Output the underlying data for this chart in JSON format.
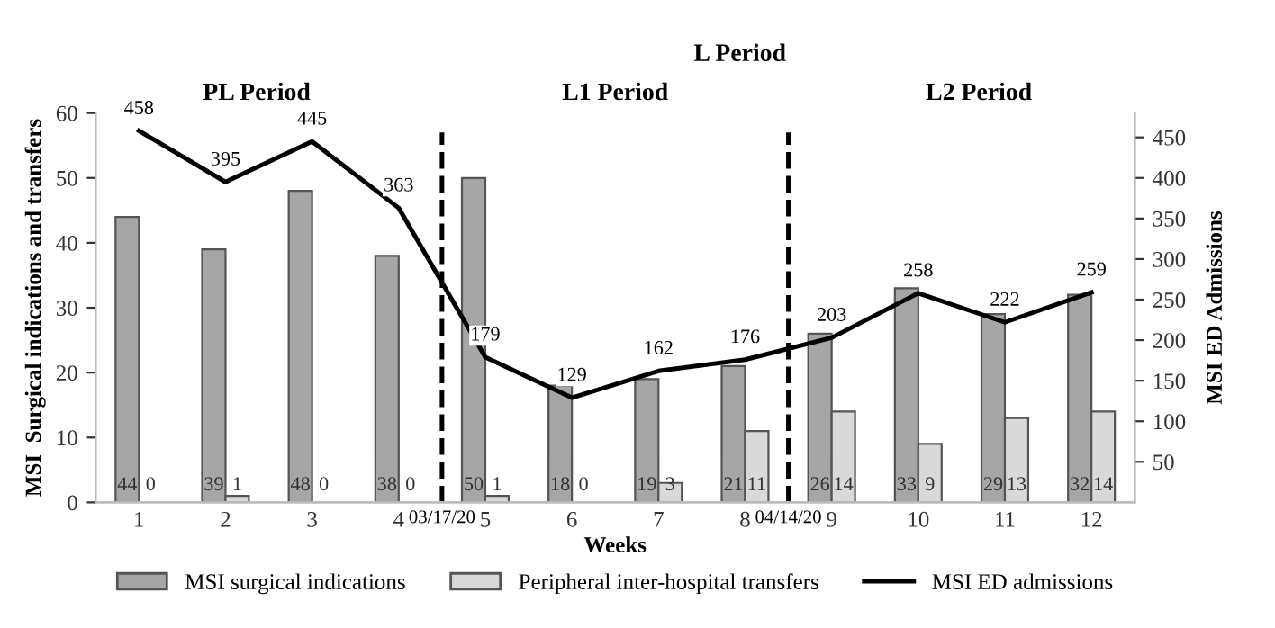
{
  "chart_data": {
    "type": "bar",
    "xlabel": "Weeks",
    "ylabel": "MSI  Surgical indications and transfers",
    "y2label": "MSI ED Admissions",
    "x": [
      1,
      2,
      3,
      4,
      5,
      6,
      7,
      8,
      9,
      10,
      11,
      12
    ],
    "xlim": [
      0.5,
      12.5
    ],
    "xticks": [
      1,
      2,
      3,
      4,
      5,
      6,
      7,
      8,
      9,
      10,
      11,
      12
    ],
    "ylim": [
      0,
      60
    ],
    "yticks": [
      0,
      10,
      20,
      30,
      40,
      50,
      60
    ],
    "y2lim": [
      0,
      480
    ],
    "y2ticks": [
      50,
      100,
      150,
      200,
      250,
      300,
      350,
      400,
      450
    ],
    "series": [
      {
        "name": "MSI surgical indications",
        "color": "#a6a6a6",
        "values": [
          44,
          39,
          48,
          38,
          50,
          18,
          19,
          21,
          26,
          33,
          29,
          32
        ]
      },
      {
        "name": "Peripheral inter-hospital transfers",
        "color": "#d9d9d9",
        "values": [
          0,
          1,
          0,
          0,
          1,
          0,
          3,
          11,
          14,
          9,
          13,
          14
        ]
      },
      {
        "name": "MSI ED admissions",
        "type": "line",
        "axis": "y2",
        "color": "#000000",
        "values": [
          458,
          395,
          445,
          363,
          179,
          129,
          162,
          176,
          203,
          258,
          222,
          259
        ]
      }
    ],
    "ref_lines": [
      {
        "axis": "x",
        "value": 4.5,
        "color": "#000000",
        "line_style": "dashed"
      },
      {
        "axis": "x",
        "value": 8.5,
        "color": "#000000",
        "line_style": "dashed"
      }
    ],
    "annotations": [
      "PL Period",
      "L1 Period",
      "L2 Period",
      "L Period",
      {
        "text": "03/17/20",
        "x": 4.5,
        "y": 0
      },
      {
        "text": "04/14/20",
        "x": 8.5,
        "y": 0
      }
    ],
    "data_labels": true,
    "legend": "bottom",
    "grid": false,
    "marker": "none",
    "line_style": "solid"
  }
}
